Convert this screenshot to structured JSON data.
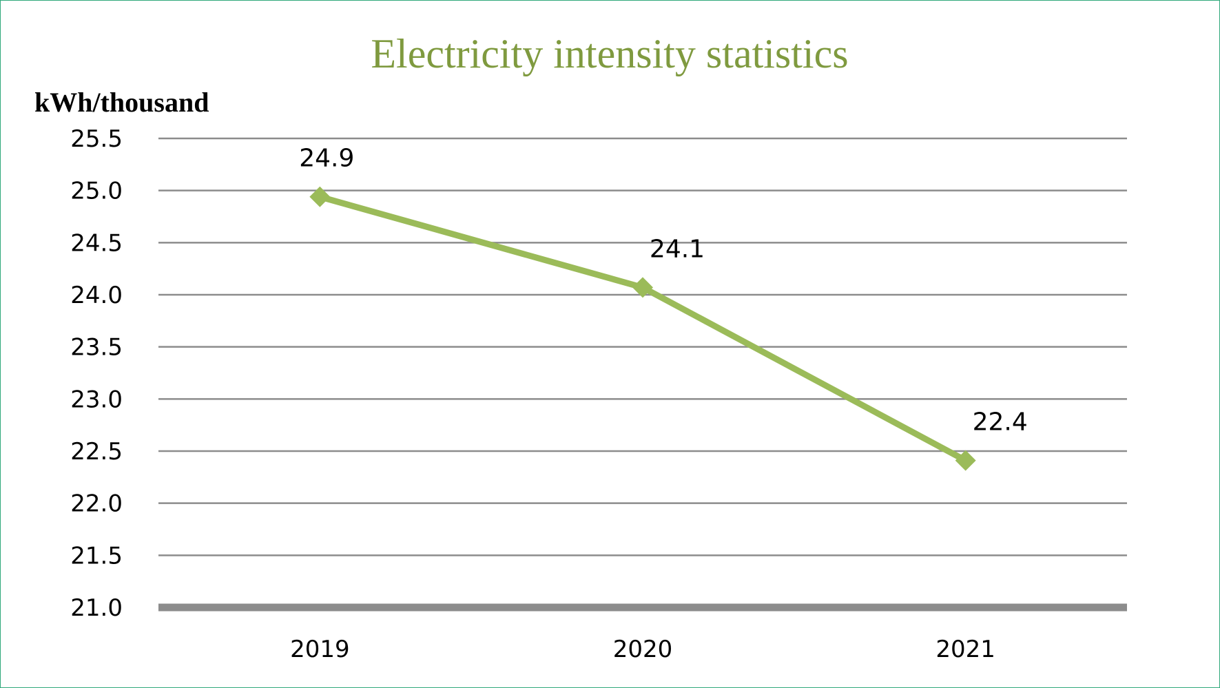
{
  "chart_data": {
    "type": "line",
    "title": "Electricity  intensity statistics",
    "ylabel": "kWh/thousand",
    "xlabel": "",
    "categories": [
      "2019",
      "2020",
      "2021"
    ],
    "series": [
      {
        "values": [
          24.94,
          24.07,
          22.41
        ],
        "labels": [
          "24.9",
          "24.1",
          "22.4"
        ],
        "marker": "diamond"
      }
    ],
    "ylim": [
      21.0,
      25.5
    ],
    "yticks": [
      21.0,
      21.5,
      22.0,
      22.5,
      23.0,
      23.5,
      24.0,
      24.5,
      25.0,
      25.5
    ],
    "ytick_labels": [
      "21.0",
      "21.5",
      "22.0",
      "22.5",
      "23.0",
      "23.5",
      "24.0",
      "24.5",
      "25.0",
      "25.5"
    ],
    "grid": true,
    "legend": "none",
    "colors": {
      "series": "#9bbb59",
      "title": "#7f9a3f",
      "grid": "#8c8c8c",
      "axis": "#8c8c8c",
      "border": "#2fa87a"
    }
  }
}
